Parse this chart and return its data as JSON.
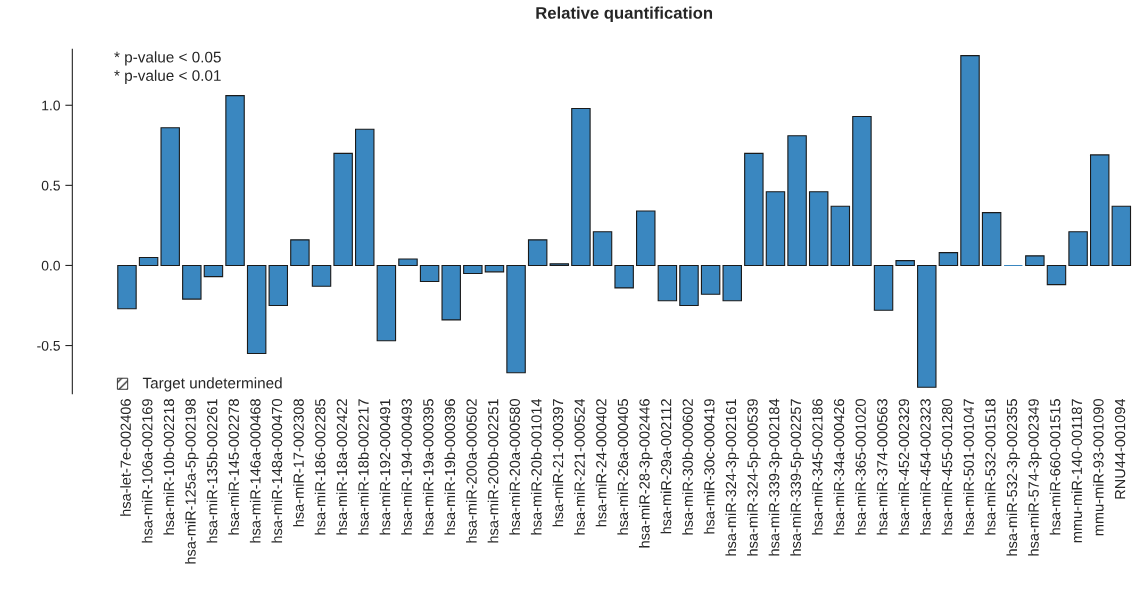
{
  "chart_data": {
    "type": "bar",
    "title": "Relative quantification",
    "categories": [
      "hsa-let-7e-002406",
      "hsa-miR-106a-002169",
      "hsa-miR-10b-002218",
      "hsa-miR-125a-5p-002198",
      "hsa-miR-135b-002261",
      "hsa-miR-145-002278",
      "hsa-miR-146a-000468",
      "hsa-miR-148a-000470",
      "hsa-miR-17-002308",
      "hsa-miR-186-002285",
      "hsa-miR-18a-002422",
      "hsa-miR-18b-002217",
      "hsa-miR-192-000491",
      "hsa-miR-194-000493",
      "hsa-miR-19a-000395",
      "hsa-miR-19b-000396",
      "hsa-miR-200a-000502",
      "hsa-miR-200b-002251",
      "hsa-miR-20a-000580",
      "hsa-miR-20b-001014",
      "hsa-miR-21-000397",
      "hsa-miR-221-000524",
      "hsa-miR-24-000402",
      "hsa-miR-26a-000405",
      "hsa-miR-28-3p-002446",
      "hsa-miR-29a-002112",
      "hsa-miR-30b-000602",
      "hsa-miR-30c-000419",
      "hsa-miR-324-3p-002161",
      "hsa-miR-324-5p-000539",
      "hsa-miR-339-3p-002184",
      "hsa-miR-339-5p-002257",
      "hsa-miR-345-002186",
      "hsa-miR-34a-000426",
      "hsa-miR-365-001020",
      "hsa-miR-374-000563",
      "hsa-miR-452-002329",
      "hsa-miR-454-002323",
      "hsa-miR-455-001280",
      "hsa-miR-501-001047",
      "hsa-miR-532-001518",
      "hsa-miR-532-3p-002355",
      "hsa-miR-574-3p-002349",
      "hsa-miR-660-001515",
      "mmu-miR-140-001187",
      "mmu-miR-93-001090",
      "RNU44-001094"
    ],
    "values": [
      -0.27,
      0.05,
      0.86,
      -0.21,
      -0.07,
      1.06,
      -0.55,
      -0.25,
      0.16,
      -0.13,
      0.7,
      0.85,
      -0.47,
      0.04,
      -0.1,
      -0.34,
      -0.05,
      -0.04,
      -0.67,
      0.16,
      0.01,
      0.98,
      0.21,
      -0.14,
      0.34,
      -0.22,
      -0.25,
      -0.18,
      -0.22,
      0.7,
      0.46,
      0.81,
      0.46,
      0.37,
      0.93,
      -0.28,
      0.03,
      -0.76,
      0.08,
      1.31,
      0.33,
      0.0,
      0.06,
      -0.12,
      0.21,
      0.69,
      0.37
    ],
    "color": "#3a87c0",
    "ylim": [
      -0.8,
      1.35
    ],
    "yticks": [
      {
        "value": -0.5,
        "label": "-0.5"
      },
      {
        "value": 0.0,
        "label": "0.0"
      },
      {
        "value": 0.5,
        "label": "0.5"
      },
      {
        "value": 1.0,
        "label": "1.0"
      }
    ],
    "annotations": [
      "* p-value < 0.05",
      "* p-value < 0.01",
      "Target undetermined"
    ],
    "grid": false,
    "legend": false
  }
}
